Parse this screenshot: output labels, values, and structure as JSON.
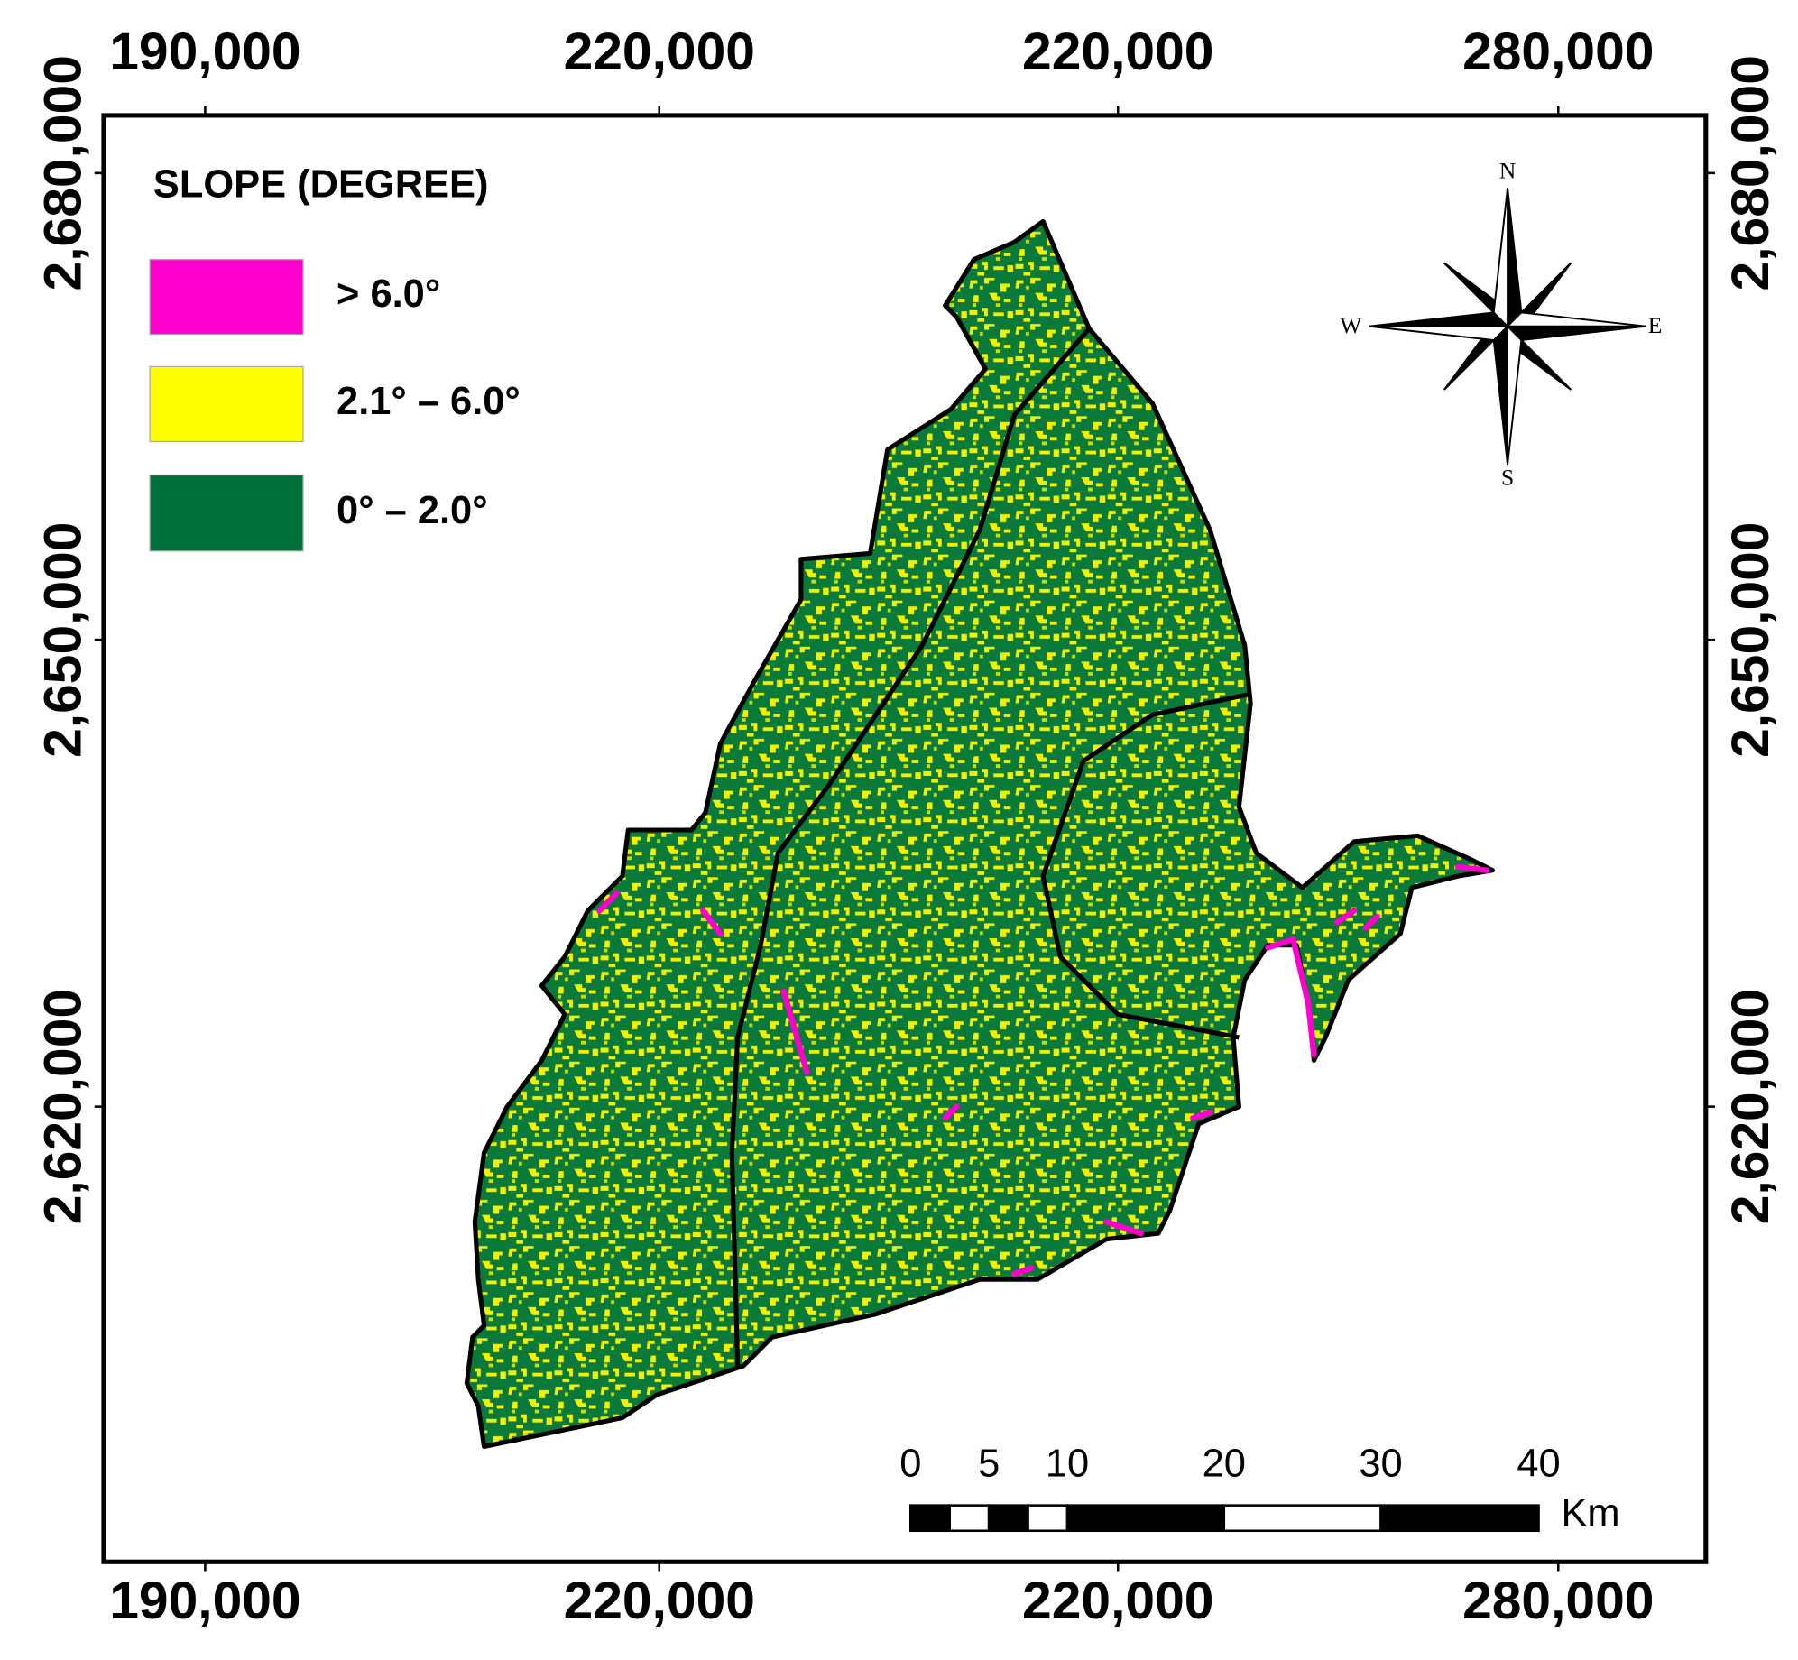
{
  "map": {
    "top_labels": [
      "190,000",
      "220,000",
      "220,000",
      "280,000"
    ],
    "bottom_labels": [
      "190,000",
      "220,000",
      "220,000",
      "280,000"
    ],
    "left_labels": [
      "2,680,000",
      "2,650,000",
      "2,620,000"
    ],
    "right_labels": [
      "2,680,000",
      "2,650,000",
      "2,620,000"
    ],
    "legend": {
      "title": "SLOPE (DEGREE)",
      "items": [
        "> 6.0°",
        "2.1° – 6.0°",
        "0° – 2.0°"
      ]
    },
    "compass": {
      "n": "N",
      "s": "S",
      "e": "E",
      "w": "W"
    },
    "scale_bar": {
      "labels": [
        "0",
        "5",
        "10",
        "20",
        "30",
        "40"
      ],
      "unit": "Km"
    }
  }
}
